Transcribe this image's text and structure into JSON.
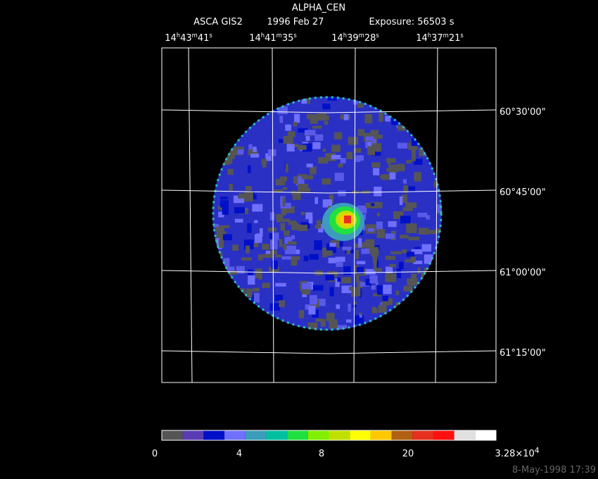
{
  "header": {
    "title": "ALPHA_CEN",
    "subtitle": [
      "ASCA GIS2",
      "1996 Feb 27",
      "Exposure: 56503 s"
    ]
  },
  "ra_labels": [
    [
      {
        "text": "14"
      },
      {
        "text": "h",
        "sup": true
      },
      {
        "text": "43"
      },
      {
        "text": "m",
        "sup": true
      },
      {
        "text": "41"
      },
      {
        "text": "s",
        "sup": true
      }
    ],
    [
      {
        "text": "14"
      },
      {
        "text": "h",
        "sup": true
      },
      {
        "text": "41"
      },
      {
        "text": "m",
        "sup": true
      },
      {
        "text": "35"
      },
      {
        "text": "s",
        "sup": true
      }
    ],
    [
      {
        "text": "14"
      },
      {
        "text": "h",
        "sup": true
      },
      {
        "text": "39"
      },
      {
        "text": "m",
        "sup": true
      },
      {
        "text": "28"
      },
      {
        "text": "s",
        "sup": true
      }
    ],
    [
      {
        "text": "14"
      },
      {
        "text": "h",
        "sup": true
      },
      {
        "text": "37"
      },
      {
        "text": "m",
        "sup": true
      },
      {
        "text": "21"
      },
      {
        "text": "s",
        "sup": true
      }
    ]
  ],
  "dec_labels": [
    "60°30'00\"",
    "60°45'00\"",
    "61°00'00\"",
    "61°15'00\""
  ],
  "colorbar": {
    "colors": [
      "#555555",
      "#5a3cb4",
      "#0010c8",
      "#7070ff",
      "#3c9cbc",
      "#00c0a0",
      "#20e040",
      "#80f000",
      "#c0e000",
      "#ffff00",
      "#ffc800",
      "#b06010",
      "#e83020",
      "#ff1010",
      "#e0e0e0",
      "#ffffff"
    ],
    "labels": [
      [
        {
          "text": "0"
        }
      ],
      [
        {
          "text": "4"
        }
      ],
      [
        {
          "text": "8"
        }
      ],
      [
        {
          "text": "20"
        }
      ],
      [
        {
          "text": "3.28×10"
        },
        {
          "text": "4",
          "sup": true
        }
      ]
    ]
  },
  "timestamp": "8-May-1998 17:39"
}
